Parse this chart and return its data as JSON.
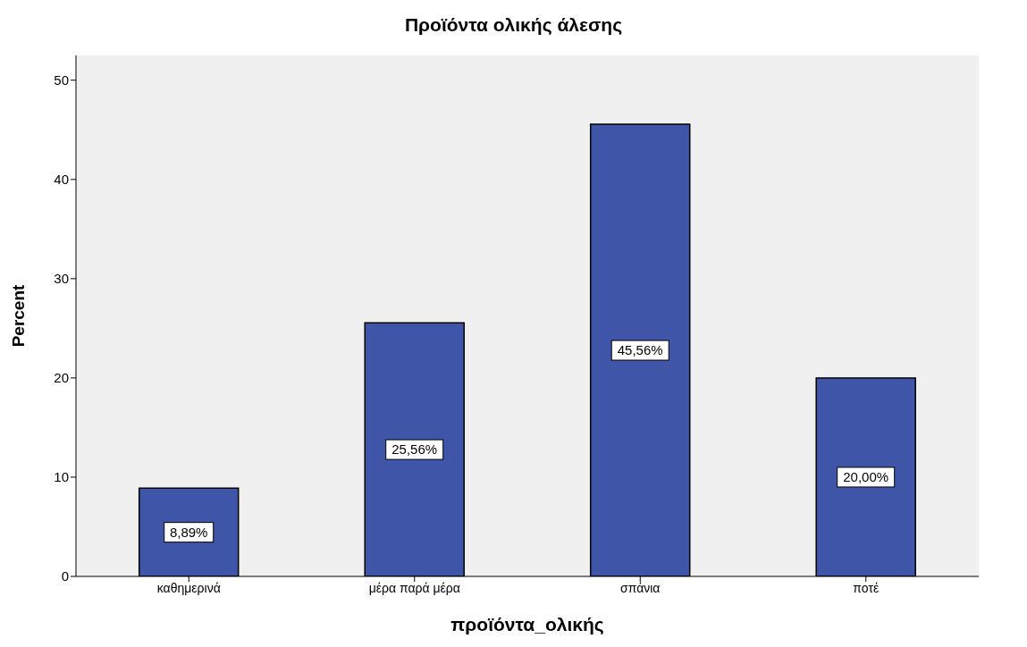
{
  "chart_data": {
    "type": "bar",
    "title": "Προϊόντα ολικής άλεσης",
    "xlabel": "προϊόντα_ολικής",
    "ylabel": "Percent",
    "categories": [
      "καθημερινά",
      "μέρα παρά μέρα",
      "σπάνια",
      "ποτέ"
    ],
    "values": [
      8.89,
      25.56,
      45.56,
      20.0
    ],
    "value_labels": [
      "8,89%",
      "25,56%",
      "45,56%",
      "20,00%"
    ],
    "color": "#3f55a8",
    "ylim": [
      0,
      52.5
    ],
    "yticks": [
      0,
      10,
      20,
      30,
      40,
      50
    ]
  }
}
